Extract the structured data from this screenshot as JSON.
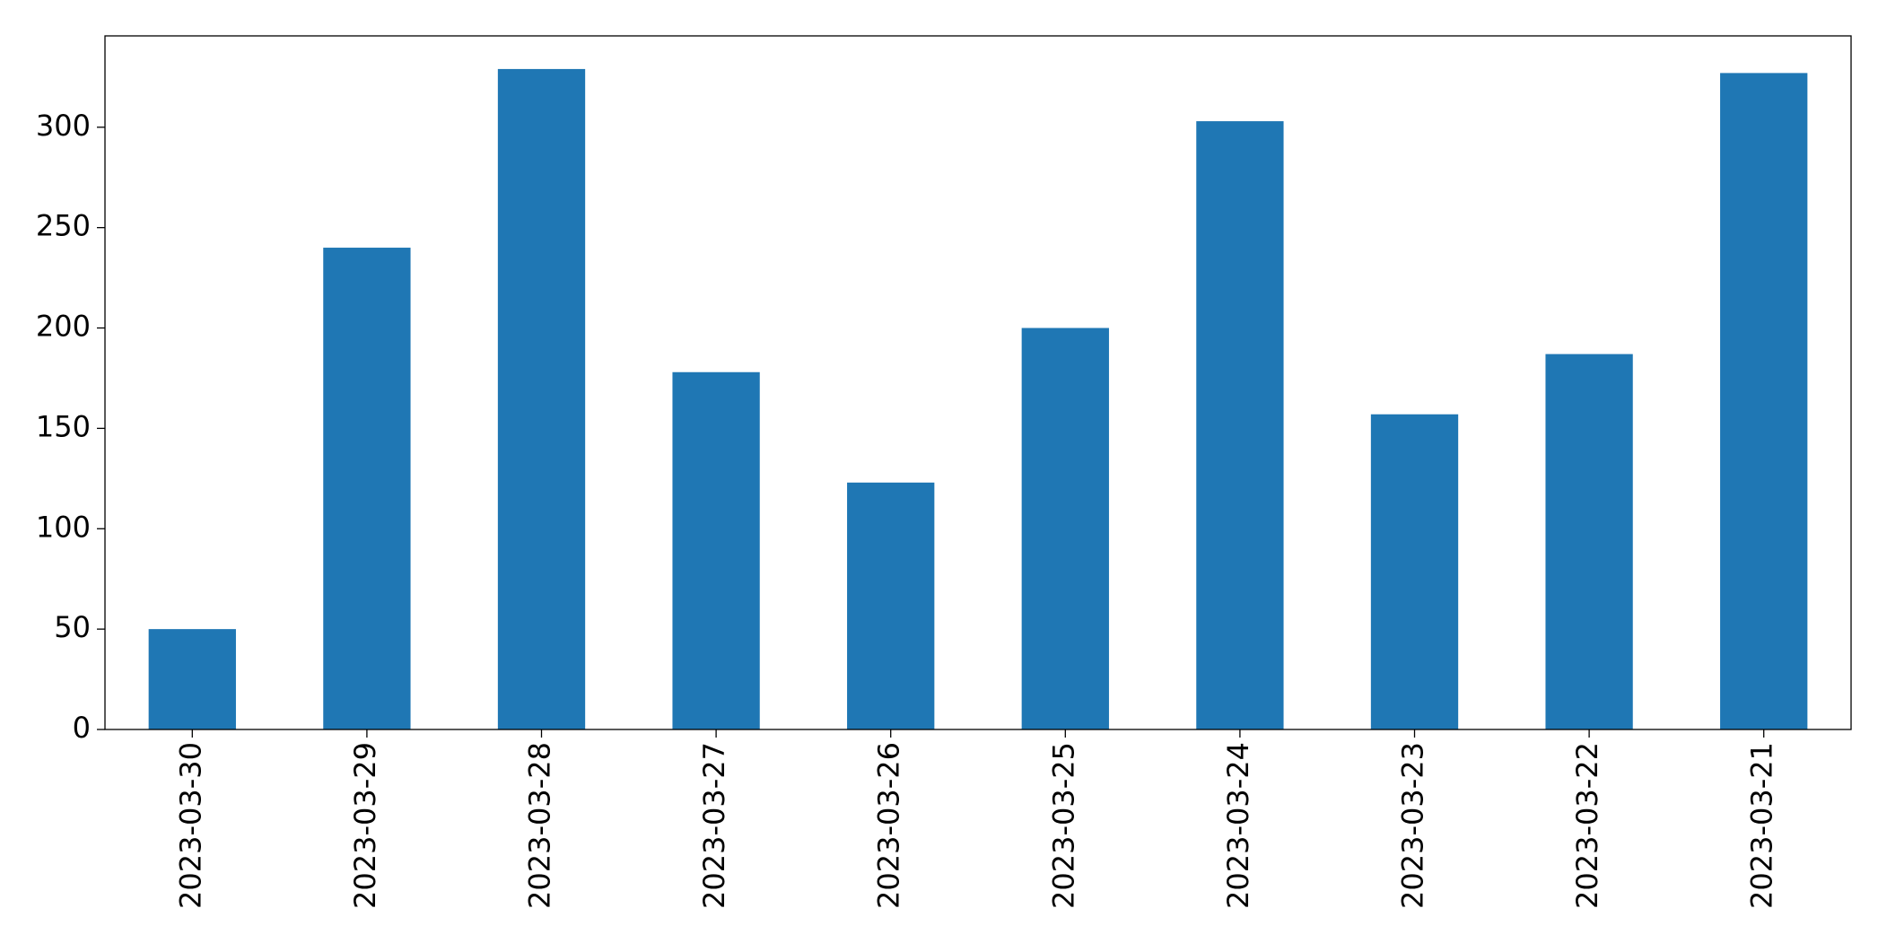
{
  "chart_data": {
    "type": "bar",
    "categories": [
      "2023-03-30",
      "2023-03-29",
      "2023-03-28",
      "2023-03-27",
      "2023-03-26",
      "2023-03-25",
      "2023-03-24",
      "2023-03-23",
      "2023-03-22",
      "2023-03-21"
    ],
    "values": [
      50,
      240,
      329,
      178,
      123,
      200,
      303,
      157,
      187,
      327
    ],
    "color": "#1f77b4",
    "ylim": [
      0,
      345.5
    ],
    "yticks": [
      0,
      50,
      100,
      150,
      200,
      250,
      300
    ],
    "grid": false
  }
}
